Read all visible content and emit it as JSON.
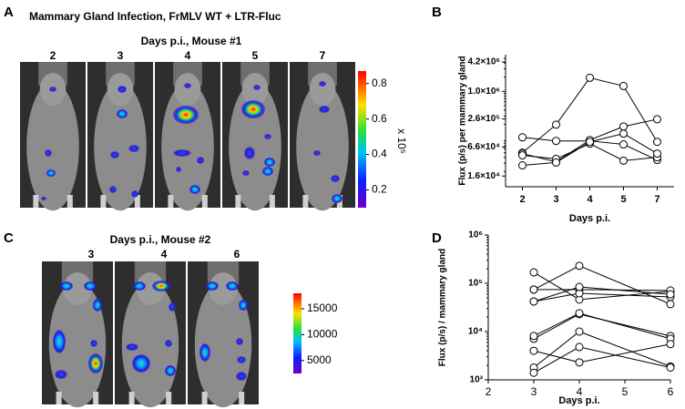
{
  "panel_labels": [
    "A",
    "B",
    "C",
    "D"
  ],
  "panels": {
    "a": {
      "title": "Mammary Gland Infection, FrMLV WT + LTR-Fluc",
      "subtitle": "Days p.i., Mouse #1",
      "days": [
        "2",
        "3",
        "4",
        "5",
        "7"
      ],
      "colorbar_unit": "x 10⁵",
      "colorbar_lim": [
        0.1,
        0.87
      ],
      "colorbar_ticks": [
        0.2,
        0.4,
        0.6,
        0.8
      ]
    },
    "c": {
      "subtitle": "Days p.i., Mouse #2",
      "days": [
        "3",
        "4",
        "6"
      ],
      "colorbar_lim": [
        2500,
        18000
      ],
      "colorbar_ticks": [
        5000,
        10000,
        15000
      ]
    }
  },
  "chart_data": [
    {
      "type": "line",
      "marker": "open-circle",
      "log_y": true,
      "xlabel": "Days p.i.",
      "ylabel": "Flux (p/s) per mammary gland",
      "categories": [
        "2",
        "3",
        "4",
        "5",
        "7"
      ],
      "ylim": [
        9500,
        6000000
      ],
      "yticks": [
        {
          "value": 16000,
          "label": "1.6×10⁴"
        },
        {
          "value": 66000,
          "label": "6.6×10⁴"
        },
        {
          "value": 260000,
          "label": "2.6×10⁵"
        },
        {
          "value": 1000000,
          "label": "1.0×10⁶"
        },
        {
          "value": 4200000,
          "label": "4.2×10⁶"
        }
      ],
      "series": [
        {
          "color": "#000000",
          "values": [
            50000,
            197000,
            1940000,
            1300000,
            85000
          ]
        },
        {
          "color": "#000000",
          "values": [
            106000,
            89000,
            89000,
            75000,
            35000
          ]
        },
        {
          "color": "#000000",
          "values": [
            48000,
            32000,
            93000,
            180000,
            256000
          ]
        },
        {
          "color": "#000000",
          "values": [
            44000,
            37000,
            78000,
            34000,
            40000
          ]
        },
        {
          "color": "#000000",
          "values": [
            27000,
            31000,
            85000,
            127000,
            48000
          ]
        }
      ]
    },
    {
      "type": "line",
      "marker": "open-circle",
      "log_y": true,
      "xlabel": "Days p.i.",
      "ylabel": "Flux (p/s) / mammary gland",
      "x": [
        3,
        4,
        6
      ],
      "xlim": [
        2,
        6
      ],
      "xticks": [
        2,
        3,
        4,
        5,
        6
      ],
      "ylim": [
        1000,
        1000000
      ],
      "yticks": [
        {
          "value": 1000,
          "label": "10³"
        },
        {
          "value": 10000,
          "label": "10⁴"
        },
        {
          "value": 100000,
          "label": "10⁵"
        },
        {
          "value": 1000000,
          "label": "10⁶"
        }
      ],
      "series": [
        {
          "color": "#000000",
          "values": [
            168000,
            46000,
            68000
          ]
        },
        {
          "color": "#000000",
          "values": [
            74000,
            230000,
            37000
          ]
        },
        {
          "color": "#000000",
          "values": [
            74000,
            74000,
            71000
          ]
        },
        {
          "color": "#000000",
          "values": [
            42000,
            62000,
            52000
          ]
        },
        {
          "color": "#000000",
          "values": [
            42000,
            84000,
            59000
          ]
        },
        {
          "color": "#000000",
          "values": [
            7100,
            23000,
            8100
          ]
        },
        {
          "color": "#000000",
          "values": [
            8100,
            24000,
            7100
          ]
        },
        {
          "color": "#000000",
          "values": [
            4000,
            2300,
            5500
          ]
        },
        {
          "color": "#000000",
          "values": [
            1800,
            10000,
            1900
          ]
        },
        {
          "color": "#000000",
          "values": [
            1400,
            4800,
            1800
          ]
        }
      ]
    }
  ]
}
